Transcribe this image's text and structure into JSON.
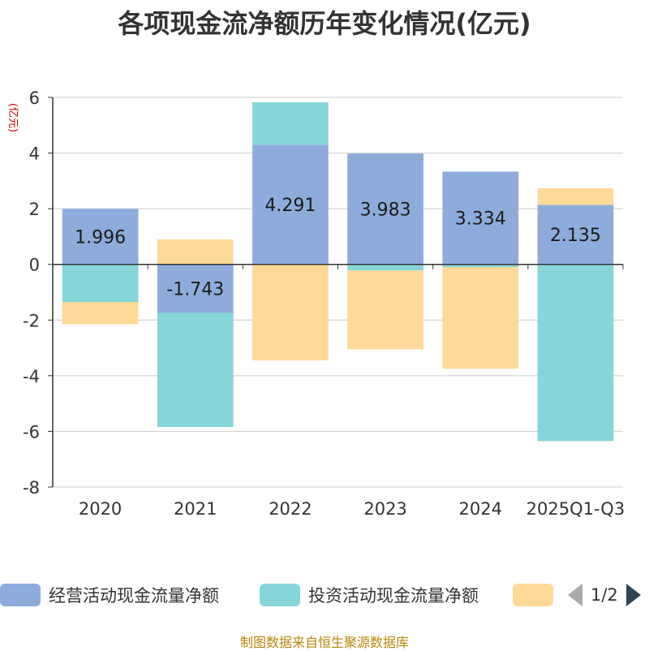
{
  "title": "各项现金流净额历年变化情况(亿元)",
  "source": "制图数据来自恒生聚源数据库",
  "pager": {
    "text": "1/2"
  },
  "chart_data": {
    "type": "bar",
    "stacked": true,
    "ylabel": "(亿元)",
    "ylim": [
      -8,
      6
    ],
    "yticks": [
      6,
      4,
      2,
      0,
      -2,
      -4,
      -6,
      -8
    ],
    "grid": true,
    "categories": [
      "2020",
      "2021",
      "2022",
      "2023",
      "2024",
      "2025Q1-Q3"
    ],
    "series": [
      {
        "name": "经营活动现金流量净额",
        "color": "#8eacdb",
        "values": [
          1.996,
          -1.743,
          4.291,
          3.983,
          3.334,
          2.135
        ],
        "labels": [
          "1.996",
          "-1.743",
          "4.291",
          "3.983",
          "3.334",
          "2.135"
        ]
      },
      {
        "name": "投资活动现金流量净额",
        "color": "#86d5d8",
        "values": [
          -1.35,
          -4.1,
          1.53,
          -0.22,
          -0.1,
          -6.35
        ]
      },
      {
        "name": "",
        "color": "#ffd998",
        "values": [
          -0.8,
          0.9,
          -3.45,
          -2.83,
          -3.65,
          0.6
        ]
      }
    ]
  }
}
